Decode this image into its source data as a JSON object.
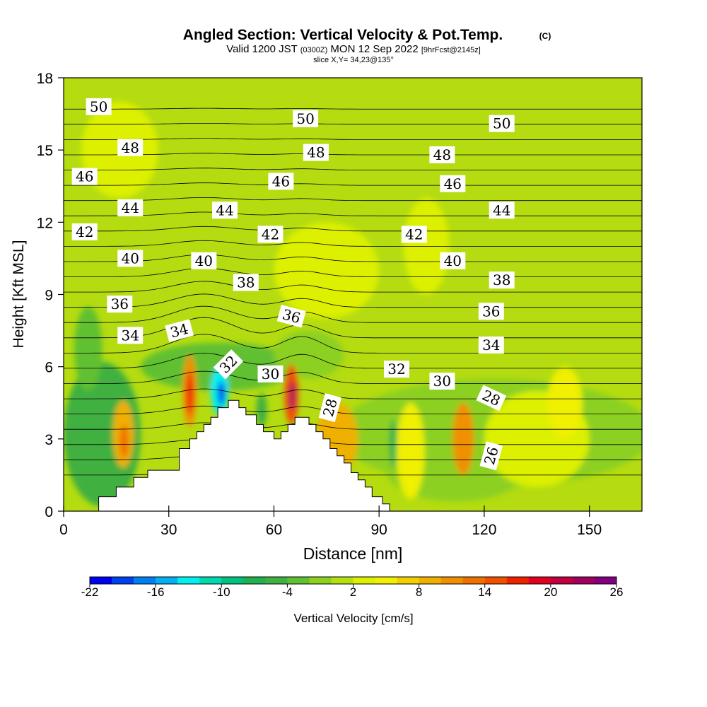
{
  "title": {
    "main": "Angled Section: Vertical Velocity & Pot.Temp.",
    "copyright": "(C)",
    "valid_prefix": "Valid 1200 JST",
    "valid_utc": "(0300Z)",
    "valid_date": "MON 12 Sep 2022",
    "forecast": "[9hrFcst@2145z]",
    "slice": "slice X,Y= 34,23@135°"
  },
  "chart_data": {
    "type": "heatmap",
    "xlabel": "Distance [nm]",
    "ylabel": "Height [Kft MSL]",
    "xlim": [
      0,
      165
    ],
    "ylim": [
      0,
      18
    ],
    "x_ticks": [
      0,
      30,
      60,
      90,
      120,
      150
    ],
    "y_ticks": [
      0,
      3,
      6,
      9,
      12,
      15,
      18
    ],
    "fill_field": "Vertical Velocity",
    "contour_field": "Pot.Temp.",
    "colorbar": {
      "label": "Vertical Velocity [cm/s]",
      "tick_labels": [
        "-22",
        "-16",
        "-10",
        "-4",
        "2",
        "8",
        "14",
        "20",
        "26"
      ],
      "levels": [
        -22,
        -20,
        -18,
        -16,
        -14,
        -12,
        -10,
        -8,
        -6,
        -4,
        -2,
        0,
        2,
        4,
        6,
        8,
        10,
        12,
        14,
        16,
        18,
        20,
        22,
        24,
        26
      ],
      "colors": [
        "#0000f0",
        "#0040f0",
        "#0080f0",
        "#00b0f0",
        "#00f0f0",
        "#00d8b0",
        "#00c080",
        "#20b050",
        "#40b040",
        "#60c030",
        "#8cd020",
        "#b4e010",
        "#dcf000",
        "#f0f000",
        "#f0d000",
        "#f0b000",
        "#f09000",
        "#f07000",
        "#f05000",
        "#f02000",
        "#e00020",
        "#c00040",
        "#a00060",
        "#800080"
      ]
    },
    "terrain": [
      [
        0,
        0
      ],
      [
        10,
        0
      ],
      [
        10,
        0.6
      ],
      [
        15,
        0.6
      ],
      [
        15,
        1
      ],
      [
        20,
        1
      ],
      [
        20,
        1.4
      ],
      [
        24,
        1.4
      ],
      [
        24,
        1.7
      ],
      [
        33,
        1.7
      ],
      [
        33,
        2.6
      ],
      [
        36,
        2.6
      ],
      [
        36,
        3
      ],
      [
        38,
        3
      ],
      [
        38,
        3.3
      ],
      [
        40,
        3.3
      ],
      [
        40,
        3.6
      ],
      [
        42,
        3.6
      ],
      [
        42,
        3.9
      ],
      [
        44,
        3.9
      ],
      [
        44,
        4.3
      ],
      [
        47,
        4.3
      ],
      [
        47,
        4.6
      ],
      [
        50,
        4.6
      ],
      [
        50,
        4.3
      ],
      [
        52,
        4.3
      ],
      [
        52,
        4
      ],
      [
        55,
        4
      ],
      [
        55,
        3.6
      ],
      [
        57,
        3.6
      ],
      [
        57,
        3.3
      ],
      [
        60,
        3.3
      ],
      [
        60,
        3
      ],
      [
        62,
        3
      ],
      [
        62,
        3.3
      ],
      [
        64,
        3.3
      ],
      [
        64,
        3.6
      ],
      [
        66,
        3.6
      ],
      [
        66,
        3.9
      ],
      [
        70,
        3.9
      ],
      [
        70,
        3.6
      ],
      [
        72,
        3.6
      ],
      [
        72,
        3.3
      ],
      [
        74,
        3.3
      ],
      [
        74,
        3
      ],
      [
        76,
        3
      ],
      [
        76,
        2.6
      ],
      [
        78,
        2.6
      ],
      [
        78,
        2.3
      ],
      [
        80,
        2.3
      ],
      [
        80,
        2
      ],
      [
        82,
        2
      ],
      [
        82,
        1.6
      ],
      [
        84,
        1.6
      ],
      [
        84,
        1.3
      ],
      [
        86,
        1.3
      ],
      [
        86,
        1
      ],
      [
        88,
        1
      ],
      [
        88,
        0.6
      ],
      [
        91,
        0.6
      ],
      [
        91,
        0.3
      ],
      [
        93,
        0.3
      ],
      [
        93,
        0
      ],
      [
        165,
        0
      ]
    ],
    "contour_labels": [
      {
        "text": "50",
        "x": 10,
        "y": 16.8,
        "angle": 0
      },
      {
        "text": "50",
        "x": 69,
        "y": 16.3,
        "angle": 0
      },
      {
        "text": "50",
        "x": 125,
        "y": 16.1,
        "angle": 0
      },
      {
        "text": "48",
        "x": 19,
        "y": 15.1,
        "angle": 0
      },
      {
        "text": "48",
        "x": 72,
        "y": 14.9,
        "angle": 0
      },
      {
        "text": "48",
        "x": 108,
        "y": 14.8,
        "angle": 0
      },
      {
        "text": "46",
        "x": 6,
        "y": 13.9,
        "angle": 0
      },
      {
        "text": "46",
        "x": 62,
        "y": 13.7,
        "angle": 0
      },
      {
        "text": "46",
        "x": 111,
        "y": 13.6,
        "angle": 0
      },
      {
        "text": "44",
        "x": 19,
        "y": 12.6,
        "angle": 0
      },
      {
        "text": "44",
        "x": 46,
        "y": 12.5,
        "angle": 0
      },
      {
        "text": "44",
        "x": 125,
        "y": 12.5,
        "angle": 0
      },
      {
        "text": "42",
        "x": 6,
        "y": 11.6,
        "angle": 0
      },
      {
        "text": "42",
        "x": 59,
        "y": 11.5,
        "angle": 0
      },
      {
        "text": "42",
        "x": 100,
        "y": 11.5,
        "angle": 0
      },
      {
        "text": "40",
        "x": 19,
        "y": 10.5,
        "angle": 0
      },
      {
        "text": "40",
        "x": 40,
        "y": 10.4,
        "angle": 0
      },
      {
        "text": "40",
        "x": 111,
        "y": 10.4,
        "angle": 0
      },
      {
        "text": "38",
        "x": 52,
        "y": 9.5,
        "angle": 0
      },
      {
        "text": "38",
        "x": 125,
        "y": 9.6,
        "angle": 0
      },
      {
        "text": "36",
        "x": 16,
        "y": 8.6,
        "angle": 0
      },
      {
        "text": "36",
        "x": 65,
        "y": 8.1,
        "angle": 15
      },
      {
        "text": "36",
        "x": 122,
        "y": 8.3,
        "angle": 0
      },
      {
        "text": "34",
        "x": 19,
        "y": 7.3,
        "angle": 0
      },
      {
        "text": "34",
        "x": 33,
        "y": 7.5,
        "angle": -15
      },
      {
        "text": "34",
        "x": 122,
        "y": 6.9,
        "angle": 0
      },
      {
        "text": "32",
        "x": 47,
        "y": 6.1,
        "angle": -45
      },
      {
        "text": "32",
        "x": 95,
        "y": 5.9,
        "angle": 0
      },
      {
        "text": "30",
        "x": 59,
        "y": 5.7,
        "angle": 0
      },
      {
        "text": "30",
        "x": 108,
        "y": 5.4,
        "angle": 0
      },
      {
        "text": "28",
        "x": 76,
        "y": 4.3,
        "angle": -75
      },
      {
        "text": "28",
        "x": 122,
        "y": 4.7,
        "angle": 25
      },
      {
        "text": "26",
        "x": 122,
        "y": 2.3,
        "angle": -75
      }
    ]
  }
}
